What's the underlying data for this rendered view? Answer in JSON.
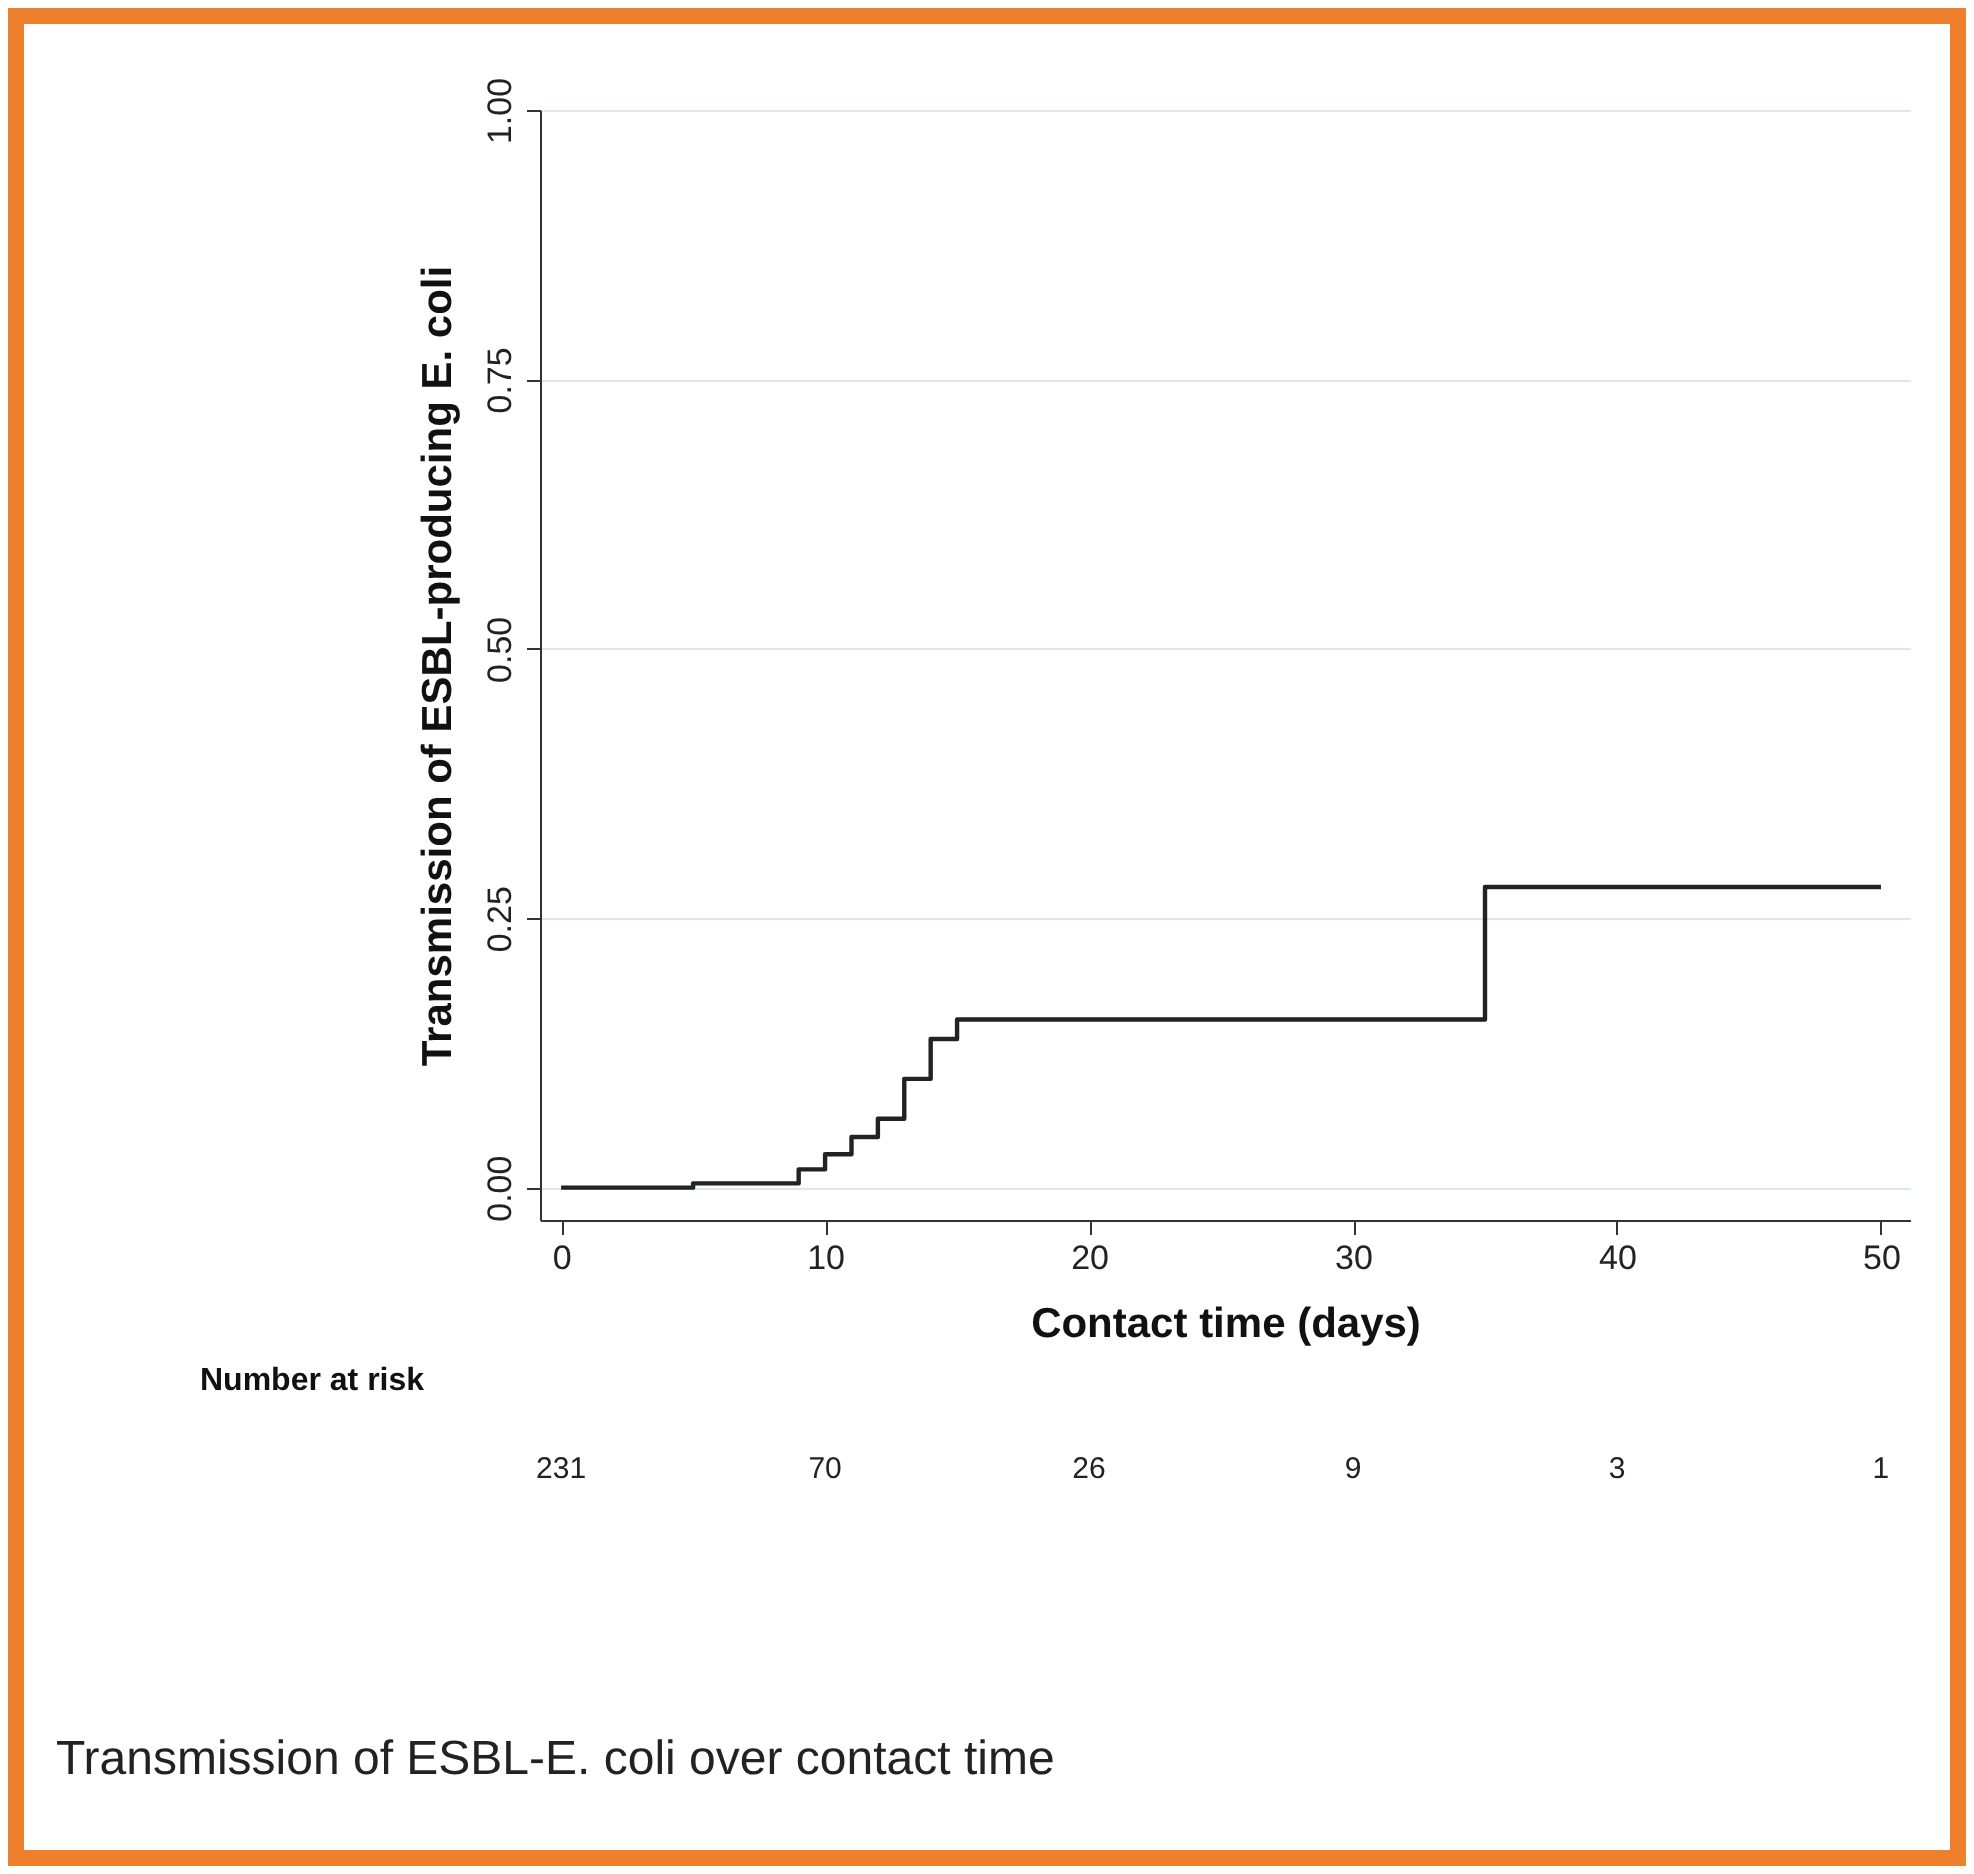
{
  "chart_data": {
    "type": "step",
    "title": "Transmission of ESBL-E. coli over contact time",
    "xlabel": "Contact time (days)",
    "ylabel": "Transmission of ESBL-producing E. coli",
    "x": [
      0,
      5,
      9,
      10,
      11,
      12,
      13,
      14,
      15,
      35,
      50
    ],
    "series": [
      {
        "color": "#222222",
        "values": [
          0,
          0.004,
          0.017,
          0.031,
          0.047,
          0.064,
          0.101,
          0.138,
          0.156,
          0.279,
          0.279
        ]
      }
    ],
    "xlim": [
      -0.8,
      51.1
    ],
    "xticks": [
      0,
      10,
      20,
      30,
      40,
      50
    ],
    "ylim": [
      -0.03,
      1
    ],
    "yticks": [
      {
        "value": 0,
        "label": "0.00"
      },
      {
        "value": 0.25,
        "label": "0.25"
      },
      {
        "value": 0.5,
        "label": "0.50"
      },
      {
        "value": 0.75,
        "label": "0.75"
      },
      {
        "value": 1,
        "label": "1.00"
      }
    ],
    "grid": "y",
    "marker": "none",
    "line_style": "solid",
    "annotations": [
      "Number at risk",
      "231",
      "70",
      "26",
      "9",
      "3",
      "1"
    ]
  }
}
